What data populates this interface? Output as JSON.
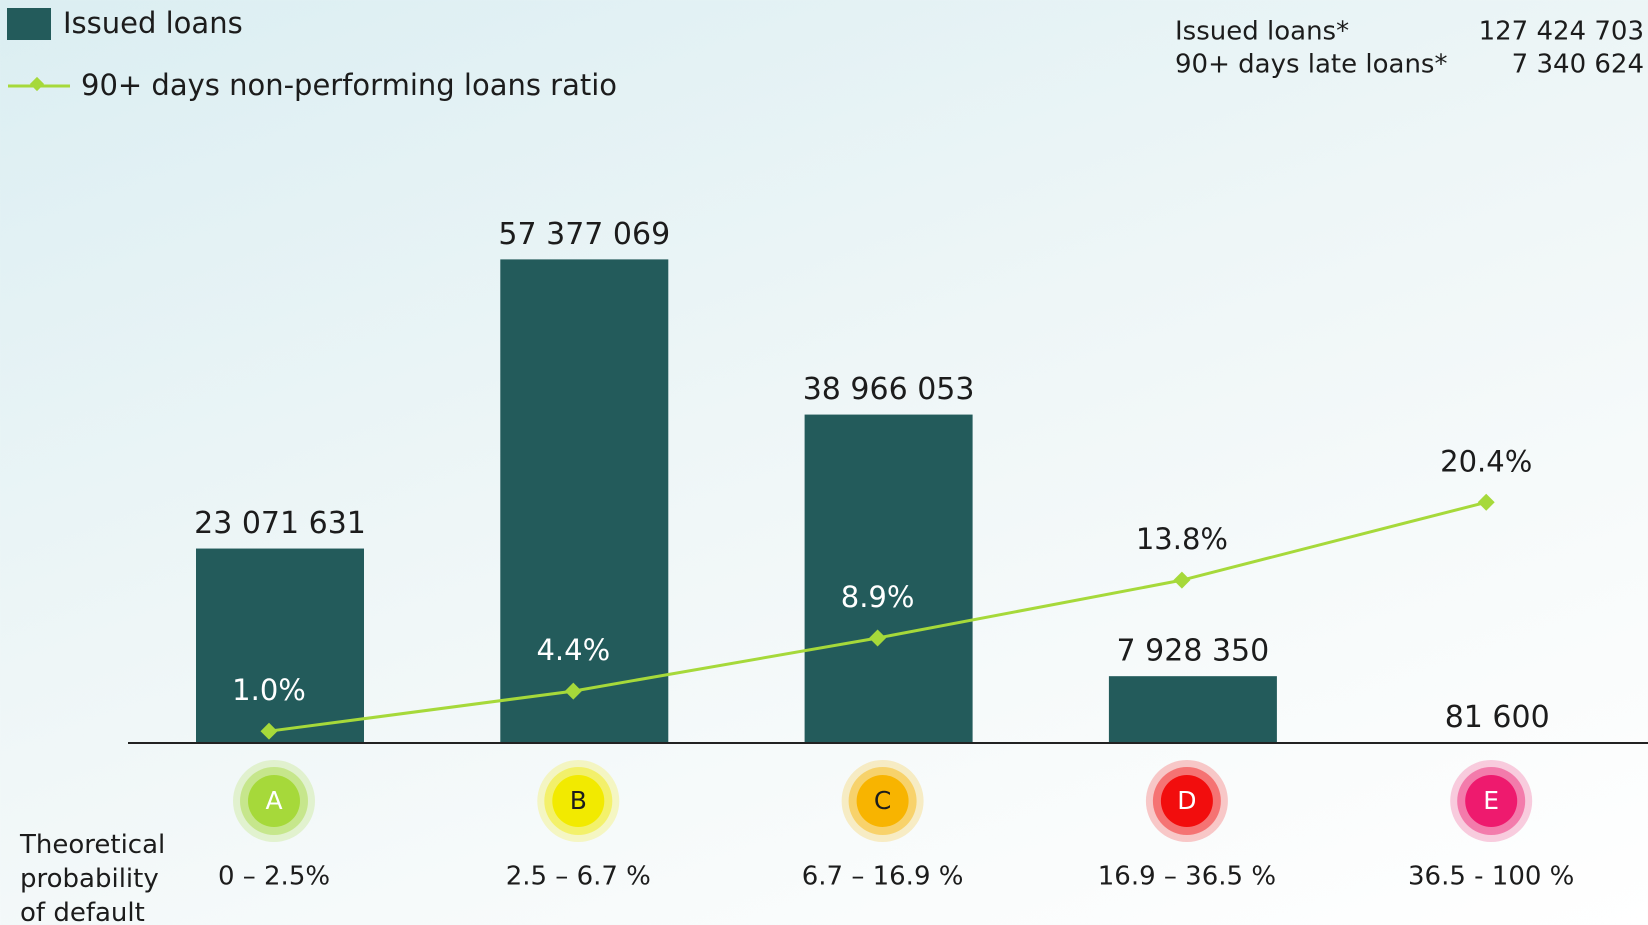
{
  "chart_data": {
    "type": "bar",
    "categories": [
      "A",
      "B",
      "C",
      "D",
      "E"
    ],
    "category_colors": [
      "#a6d93a",
      "#f2ea00",
      "#f8b400",
      "#f20d0d",
      "#ee1a6e"
    ],
    "category_sublabels": [
      "0 – 2.5%",
      "2.5 – 6.7 %",
      "6.7 – 16.9 %",
      "16.9 – 36.5 %",
      "36.5 - 100 %"
    ],
    "x_label": "Theoretical probability of default",
    "series": [
      {
        "name": "Issued loans",
        "type": "bar",
        "color": "#235b5b",
        "values": [
          23071631,
          57377069,
          38966053,
          7928350,
          81600
        ],
        "value_labels": [
          "23 071 631",
          "57 377 069",
          "38 966 053",
          "7 928 350",
          "81 600"
        ]
      },
      {
        "name": "90+ days non-performing loans ratio",
        "type": "line",
        "axis": "y2",
        "color": "#a6d93a",
        "values": [
          1.0,
          4.4,
          8.9,
          13.8,
          20.4
        ],
        "value_labels": [
          "1.0%",
          "4.4%",
          "8.9%",
          "13.8%",
          "20.4%"
        ]
      }
    ],
    "ylim": [
      0,
      70000000
    ],
    "y2lim": [
      0,
      50
    ],
    "summary": [
      {
        "label": "Issued loans*",
        "value": "127 424 703"
      },
      {
        "label": "90+ days late loans*",
        "value": "7 340 624"
      }
    ]
  }
}
